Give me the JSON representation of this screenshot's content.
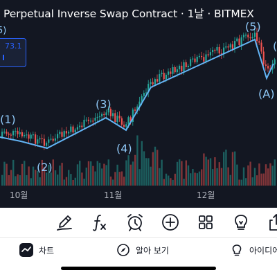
{
  "chart": {
    "title": "Perpetual Inverse Swap Contract · 1날 · BITMEX",
    "price_label": "73.1",
    "wave_labels": [
      "(1)",
      "(2)",
      "(3)",
      "(4)",
      "(5)",
      "(A)"
    ],
    "corner_label": "5)",
    "x_labels": [
      "10월",
      "11월",
      "12월"
    ],
    "colors": {
      "background": "#131722",
      "up": "#26a69a",
      "down": "#ef5350",
      "wave_line": "#64b5f6",
      "wave_text": "#90caf9",
      "label_text": "#b2b5be"
    }
  },
  "toolbar": {
    "tools": [
      "draw-icon",
      "indicators-icon",
      "alert-icon",
      "add-icon",
      "layouts-icon",
      "ideas-icon",
      "share-icon"
    ]
  },
  "nav": {
    "chart_label": "차트",
    "explore_label": "알아 보기",
    "ideas_label": "아이디어"
  }
}
